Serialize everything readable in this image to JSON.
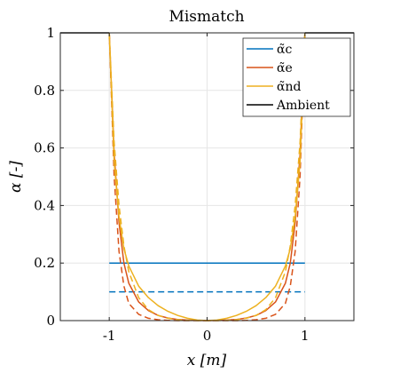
{
  "chart_data": {
    "type": "line",
    "title": "Mismatch",
    "xlabel": "x [m]",
    "ylabel": "α [-]",
    "xlim": [
      -1.5,
      1.5
    ],
    "ylim": [
      0,
      1
    ],
    "xticks": [
      -1,
      0,
      1
    ],
    "xtick_labels": [
      "-1",
      "0",
      "1"
    ],
    "yticks": [
      0,
      0.2,
      0.4,
      0.6,
      0.8,
      1
    ],
    "ytick_labels": [
      "0",
      "0.2",
      "0.4",
      "0.6",
      "0.8",
      "1"
    ],
    "grid": true,
    "legend_position": "top-right",
    "series": [
      {
        "name": "α̃c",
        "color": "#0072BD",
        "style": "solid",
        "x": [
          -1,
          1
        ],
        "y": [
          0.2,
          0.2
        ]
      },
      {
        "color": "#0072BD",
        "style": "dashed",
        "x": [
          -1,
          1
        ],
        "y": [
          0.1,
          0.1
        ]
      },
      {
        "name": "α̃e",
        "color": "#D95319",
        "style": "solid",
        "x": [
          -1,
          -0.95,
          -0.9,
          -0.85,
          -0.8,
          -0.7,
          -0.6,
          -0.5,
          -0.4,
          -0.3,
          -0.2,
          -0.1,
          0,
          0.1,
          0.2,
          0.3,
          0.4,
          0.5,
          0.6,
          0.7,
          0.8,
          0.85,
          0.9,
          0.95,
          1
        ],
        "y": [
          1,
          0.58,
          0.34,
          0.2,
          0.13,
          0.065,
          0.035,
          0.018,
          0.009,
          0.004,
          0.002,
          0.001,
          0,
          0.001,
          0.002,
          0.004,
          0.009,
          0.018,
          0.035,
          0.065,
          0.13,
          0.2,
          0.34,
          0.58,
          1
        ]
      },
      {
        "color": "#D95319",
        "style": "dashed",
        "x": [
          -1,
          -0.95,
          -0.9,
          -0.85,
          -0.8,
          -0.7,
          -0.6,
          -0.5,
          -0.4,
          -0.3,
          -0.2,
          -0.1,
          0,
          0.1,
          0.2,
          0.3,
          0.4,
          0.5,
          0.6,
          0.7,
          0.8,
          0.85,
          0.9,
          0.95,
          1
        ],
        "y": [
          1,
          0.5,
          0.24,
          0.12,
          0.06,
          0.022,
          0.008,
          0.003,
          0.001,
          0,
          0,
          0,
          0,
          0,
          0,
          0,
          0.001,
          0.003,
          0.008,
          0.022,
          0.06,
          0.12,
          0.24,
          0.5,
          1
        ]
      },
      {
        "name": "α̃nd",
        "color": "#EDB120",
        "style": "solid",
        "x": [
          -1,
          -0.95,
          -0.9,
          -0.85,
          -0.8,
          -0.7,
          -0.6,
          -0.5,
          -0.4,
          -0.3,
          -0.2,
          -0.1,
          0,
          0.1,
          0.2,
          0.3,
          0.4,
          0.5,
          0.6,
          0.7,
          0.8,
          0.85,
          0.9,
          0.95,
          1
        ],
        "y": [
          1,
          0.55,
          0.36,
          0.25,
          0.19,
          0.12,
          0.08,
          0.052,
          0.032,
          0.018,
          0.008,
          0.002,
          0,
          0.002,
          0.008,
          0.018,
          0.032,
          0.052,
          0.08,
          0.12,
          0.19,
          0.25,
          0.36,
          0.55,
          1
        ]
      },
      {
        "color": "#EDB120",
        "style": "dashed",
        "x": [
          -1,
          -0.95,
          -0.9,
          -0.85,
          -0.8,
          -0.7,
          -0.6,
          -0.5,
          -0.4,
          -0.3,
          -0.2,
          -0.1,
          0,
          0.1,
          0.2,
          0.3,
          0.4,
          0.5,
          0.6,
          0.7,
          0.8,
          0.85,
          0.9,
          0.95,
          1
        ],
        "y": [
          1,
          0.62,
          0.4,
          0.26,
          0.17,
          0.08,
          0.038,
          0.018,
          0.008,
          0.003,
          0.001,
          0,
          0,
          0,
          0.001,
          0.003,
          0.008,
          0.018,
          0.038,
          0.08,
          0.17,
          0.26,
          0.4,
          0.62,
          1
        ]
      },
      {
        "name": "Ambient",
        "color": "#000000",
        "style": "solid",
        "segments": [
          {
            "x": [
              -1.5,
              -1
            ],
            "y": [
              1,
              1
            ]
          },
          {
            "x": [
              1,
              1.5
            ],
            "y": [
              1,
              1
            ]
          }
        ]
      }
    ]
  }
}
